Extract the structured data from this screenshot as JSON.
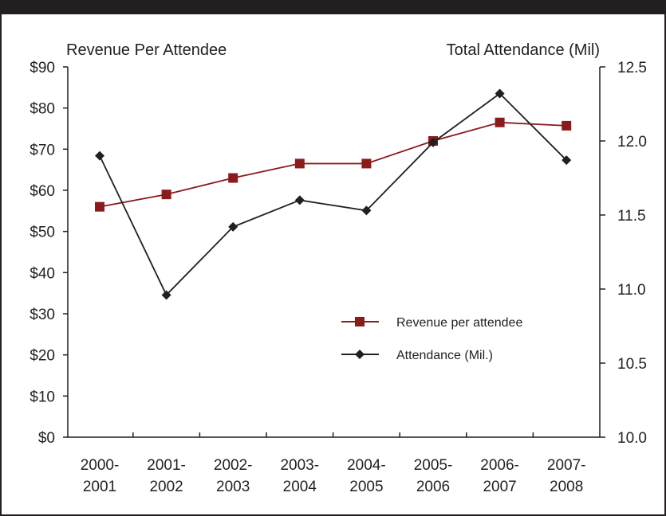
{
  "chart_data": {
    "type": "line",
    "categories": [
      "2000-2001",
      "2001-2002",
      "2002-2003",
      "2003-2004",
      "2004-2005",
      "2005-2006",
      "2006-2007",
      "2007-2008"
    ],
    "category_lines": [
      [
        "2000-",
        "2001"
      ],
      [
        "2001-",
        "2002"
      ],
      [
        "2002-",
        "2003"
      ],
      [
        "2003-",
        "2004"
      ],
      [
        "2004-",
        "2005"
      ],
      [
        "2005-",
        "2006"
      ],
      [
        "2006-",
        "2007"
      ],
      [
        "2007-",
        "2008"
      ]
    ],
    "left_axis": {
      "label": "Revenue Per Attendee",
      "range": [
        0,
        90
      ],
      "ticks": [
        0,
        10,
        20,
        30,
        40,
        50,
        60,
        70,
        80,
        90
      ],
      "tick_labels": [
        "$0",
        "$10",
        "$20",
        "$30",
        "$40",
        "$50",
        "$60",
        "$70",
        "$80",
        "$90"
      ]
    },
    "right_axis": {
      "label": "Total Attendance (Mil)",
      "range": [
        10.0,
        12.5
      ],
      "ticks": [
        10.0,
        10.5,
        11.0,
        11.5,
        12.0,
        12.5
      ],
      "tick_labels": [
        "10.0",
        "10.5",
        "11.0",
        "11.5",
        "12.0",
        "12.5"
      ]
    },
    "series": [
      {
        "name": "Revenue per attendee",
        "axis": "left",
        "marker": "square",
        "color": "#8b1a1a",
        "values": [
          56,
          59,
          63,
          66.5,
          66.5,
          72,
          76.5,
          75.7
        ]
      },
      {
        "name": "Attendance (Mil.)",
        "axis": "right",
        "marker": "diamond",
        "color": "#231f20",
        "values": [
          11.9,
          10.96,
          11.42,
          11.6,
          11.53,
          11.99,
          12.32,
          11.87
        ]
      }
    ],
    "legend_position": "center-right",
    "grid": false
  }
}
